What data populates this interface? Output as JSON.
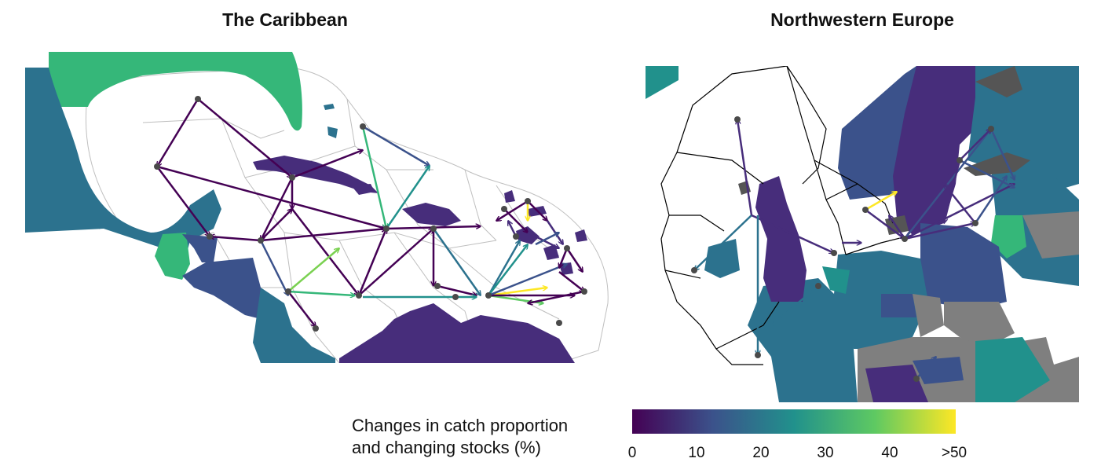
{
  "titles": {
    "left": "The Caribbean",
    "right": "Northwestern Europe"
  },
  "legend": {
    "label_line1": "Changes in catch proportion",
    "label_line2": "and changing stocks (%)",
    "ticks": [
      "0",
      "10",
      "20",
      "30",
      "40",
      ">50"
    ],
    "gradient": [
      "#440154",
      "#3b528b",
      "#21918c",
      "#5ec962",
      "#fde725"
    ]
  },
  "colors": {
    "dark_purple": "#440154",
    "purple": "#472d7b",
    "indigo": "#3b528b",
    "teal_blue": "#2c728e",
    "teal": "#21918c",
    "green": "#35b779",
    "light_green": "#7ad151",
    "yellow": "#fde725",
    "grey": "#7f7f7f",
    "zone_outline": "#bfbfbf",
    "land_dark": "#555555"
  }
}
